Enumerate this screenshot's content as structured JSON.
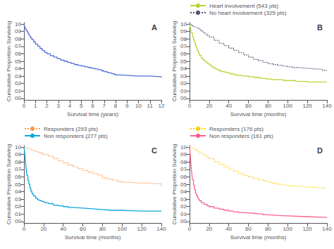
{
  "chart_data": [
    {
      "type": "step",
      "title": "A",
      "x_label": "Survival time (years)",
      "y_label": "Cumulative Proportion Surviving",
      "xlim": [
        0,
        12
      ],
      "ylim": [
        -0.02,
        1.02
      ],
      "xticks": [
        0,
        1,
        2,
        3,
        4,
        5,
        6,
        7,
        8,
        9,
        10,
        11,
        12
      ],
      "yticks": [
        {
          "value": 0.0,
          "label": "00"
        },
        {
          "value": 0.1,
          "label": "01"
        },
        {
          "value": 0.2,
          "label": "02"
        },
        {
          "value": 0.3,
          "label": "03"
        },
        {
          "value": 0.4,
          "label": "04"
        },
        {
          "value": 0.5,
          "label": "05"
        },
        {
          "value": 0.6,
          "label": "06"
        },
        {
          "value": 0.7,
          "label": "07"
        },
        {
          "value": 0.8,
          "label": "08"
        },
        {
          "value": 0.9,
          "label": "09"
        },
        {
          "value": 1.0,
          "label": "10"
        }
      ],
      "grid": false,
      "series": [
        {
          "line_style": "solid",
          "x": [
            0,
            0.02,
            0.05,
            0.08,
            0.12,
            0.17,
            0.22,
            0.28,
            0.35,
            0.42,
            0.5,
            0.6,
            0.7,
            0.85,
            1.0,
            1.2,
            1.4,
            1.6,
            1.8,
            2.0,
            2.3,
            2.6,
            2.9,
            3.2,
            3.5,
            3.8,
            4.1,
            4.4,
            4.7,
            5.0,
            5.3,
            5.6,
            5.9,
            6.2,
            6.5,
            6.8,
            7.0,
            7.3,
            7.6,
            7.8,
            8.0,
            8.5,
            9.0,
            9.5,
            10.0,
            10.5,
            11.0,
            11.5,
            12.0
          ],
          "values": [
            1.0,
            0.985,
            0.97,
            0.955,
            0.94,
            0.925,
            0.91,
            0.895,
            0.875,
            0.855,
            0.83,
            0.81,
            0.79,
            0.76,
            0.73,
            0.7,
            0.67,
            0.645,
            0.62,
            0.6,
            0.575,
            0.555,
            0.535,
            0.515,
            0.5,
            0.485,
            0.47,
            0.455,
            0.445,
            0.435,
            0.425,
            0.415,
            0.405,
            0.395,
            0.385,
            0.37,
            0.36,
            0.345,
            0.335,
            0.325,
            0.315,
            0.31,
            0.305,
            0.3,
            0.3,
            0.3,
            0.295,
            0.29,
            0.28
          ]
        }
      ]
    },
    {
      "type": "step",
      "title": "B",
      "x_label": "Survival time (months)",
      "y_label": "Cumulative Proportion Surviving",
      "xlim": [
        0,
        140
      ],
      "ylim": [
        -0.02,
        1.02
      ],
      "xticks": [
        0,
        20,
        40,
        60,
        80,
        100,
        120,
        140
      ],
      "yticks": [
        {
          "value": 0.0,
          "label": "00"
        },
        {
          "value": 0.1,
          "label": "01"
        },
        {
          "value": 0.2,
          "label": "02"
        },
        {
          "value": 0.3,
          "label": "03"
        },
        {
          "value": 0.4,
          "label": "04"
        },
        {
          "value": 0.5,
          "label": "05"
        },
        {
          "value": 0.6,
          "label": "06"
        },
        {
          "value": 0.7,
          "label": "07"
        },
        {
          "value": 0.8,
          "label": "08"
        },
        {
          "value": 0.9,
          "label": "09"
        },
        {
          "value": 1.0,
          "label": "10"
        }
      ],
      "grid": false,
      "legend": "top",
      "series": [
        {
          "name": "Heart involvement (543 pts)",
          "line_style": "solid",
          "x": [
            0,
            0.5,
            1,
            1.5,
            2,
            3,
            4,
            5,
            6,
            7,
            8,
            9,
            10,
            12,
            14,
            16,
            18,
            20,
            22,
            24,
            27,
            30,
            33,
            36,
            39,
            42,
            45,
            48,
            54,
            60,
            66,
            72,
            78,
            84,
            90,
            96,
            102,
            108,
            114,
            120,
            126,
            132,
            138,
            140
          ],
          "values": [
            1.0,
            0.97,
            0.94,
            0.91,
            0.88,
            0.83,
            0.79,
            0.75,
            0.71,
            0.68,
            0.64,
            0.61,
            0.58,
            0.54,
            0.51,
            0.49,
            0.47,
            0.45,
            0.43,
            0.41,
            0.39,
            0.37,
            0.36,
            0.35,
            0.34,
            0.33,
            0.32,
            0.31,
            0.3,
            0.29,
            0.28,
            0.27,
            0.26,
            0.25,
            0.25,
            0.24,
            0.24,
            0.23,
            0.23,
            0.22,
            0.22,
            0.22,
            0.22,
            0.22
          ]
        },
        {
          "name": "No heart involvement (325 pts)",
          "line_style": "dotted",
          "x": [
            0,
            1,
            2,
            3,
            4,
            5,
            6,
            7,
            8,
            9,
            10,
            12,
            14,
            16,
            18,
            20,
            25,
            30,
            35,
            40,
            45,
            50,
            55,
            60,
            65,
            70,
            75,
            80,
            85,
            90,
            95,
            100,
            105,
            110,
            115,
            120,
            125,
            130,
            135,
            140
          ],
          "values": [
            1.0,
            0.99,
            0.98,
            0.97,
            0.965,
            0.96,
            0.955,
            0.95,
            0.945,
            0.935,
            0.925,
            0.905,
            0.885,
            0.865,
            0.845,
            0.825,
            0.78,
            0.74,
            0.71,
            0.675,
            0.645,
            0.615,
            0.585,
            0.555,
            0.525,
            0.505,
            0.485,
            0.465,
            0.455,
            0.445,
            0.435,
            0.425,
            0.415,
            0.41,
            0.405,
            0.4,
            0.395,
            0.39,
            0.375,
            0.37
          ]
        }
      ]
    },
    {
      "type": "step",
      "title": "C",
      "x_label": "Survival time (months)",
      "y_label": "Cumulative Proportion Surviving",
      "xlim": [
        0,
        140
      ],
      "ylim": [
        -0.02,
        1.02
      ],
      "xticks": [
        0,
        20,
        40,
        60,
        80,
        100,
        120,
        140
      ],
      "yticks": [
        {
          "value": 0.0,
          "label": "00"
        },
        {
          "value": 0.1,
          "label": "01"
        },
        {
          "value": 0.2,
          "label": "02"
        },
        {
          "value": 0.3,
          "label": "03"
        },
        {
          "value": 0.4,
          "label": "04"
        },
        {
          "value": 0.5,
          "label": "05"
        },
        {
          "value": 0.6,
          "label": "06"
        },
        {
          "value": 0.7,
          "label": "07"
        },
        {
          "value": 0.8,
          "label": "08"
        },
        {
          "value": 0.9,
          "label": "09"
        },
        {
          "value": 1.0,
          "label": "10"
        }
      ],
      "grid": false,
      "legend": "top",
      "series": [
        {
          "name": "Responders (293 pts)",
          "line_style": "dotted",
          "x": [
            0,
            1,
            2,
            3,
            4,
            5,
            6,
            7,
            8,
            9,
            10,
            12,
            15,
            18,
            20,
            25,
            30,
            35,
            40,
            45,
            50,
            55,
            60,
            65,
            70,
            75,
            80,
            85,
            90,
            95,
            100,
            105,
            110,
            115,
            120,
            125,
            130,
            135,
            140
          ],
          "values": [
            1.0,
            0.995,
            0.99,
            0.985,
            0.98,
            0.975,
            0.97,
            0.965,
            0.96,
            0.955,
            0.95,
            0.94,
            0.925,
            0.91,
            0.9,
            0.875,
            0.845,
            0.815,
            0.79,
            0.76,
            0.735,
            0.71,
            0.685,
            0.665,
            0.645,
            0.625,
            0.585,
            0.57,
            0.555,
            0.54,
            0.53,
            0.525,
            0.52,
            0.515,
            0.515,
            0.51,
            0.51,
            0.505,
            0.47
          ]
        },
        {
          "name": "Non responders (277 pts)",
          "line_style": "solid",
          "x": [
            0,
            0.5,
            1,
            1.5,
            2,
            2.5,
            3,
            4,
            5,
            6,
            7,
            8,
            9,
            10,
            12,
            14,
            16,
            18,
            20,
            22,
            25,
            30,
            35,
            40,
            45,
            50,
            55,
            60,
            65,
            70,
            75,
            80,
            85,
            90,
            100,
            110,
            120,
            130,
            140
          ],
          "values": [
            1.0,
            0.95,
            0.88,
            0.81,
            0.74,
            0.68,
            0.62,
            0.55,
            0.5,
            0.45,
            0.41,
            0.38,
            0.36,
            0.34,
            0.31,
            0.29,
            0.28,
            0.27,
            0.26,
            0.25,
            0.24,
            0.22,
            0.21,
            0.2,
            0.19,
            0.185,
            0.18,
            0.175,
            0.17,
            0.165,
            0.16,
            0.155,
            0.15,
            0.15,
            0.145,
            0.14,
            0.14,
            0.14,
            0.14
          ]
        }
      ]
    },
    {
      "type": "step",
      "title": "D",
      "x_label": "Survival time (months)",
      "y_label": "Cumulative Proportion Surviving",
      "xlim": [
        0,
        140
      ],
      "ylim": [
        -0.02,
        1.02
      ],
      "xticks": [
        0,
        20,
        40,
        60,
        80,
        100,
        120,
        140
      ],
      "yticks": [
        {
          "value": 0.0,
          "label": "00"
        },
        {
          "value": 0.1,
          "label": "01"
        },
        {
          "value": 0.2,
          "label": "02"
        },
        {
          "value": 0.3,
          "label": "03"
        },
        {
          "value": 0.4,
          "label": "04"
        },
        {
          "value": 0.5,
          "label": "05"
        },
        {
          "value": 0.6,
          "label": "06"
        },
        {
          "value": 0.7,
          "label": "07"
        },
        {
          "value": 0.8,
          "label": "08"
        },
        {
          "value": 0.9,
          "label": "09"
        },
        {
          "value": 1.0,
          "label": "10"
        }
      ],
      "grid": false,
      "legend": "top",
      "series": [
        {
          "name": "Responders (176 pts)",
          "line_style": "dotted",
          "x": [
            0,
            1,
            2,
            3,
            4,
            5,
            6,
            7,
            8,
            9,
            10,
            12,
            15,
            18,
            20,
            25,
            30,
            35,
            40,
            45,
            50,
            55,
            60,
            65,
            70,
            75,
            80,
            85,
            90,
            95,
            100,
            105,
            110,
            115,
            120,
            125,
            130,
            135,
            140
          ],
          "values": [
            1.0,
            0.995,
            0.99,
            0.985,
            0.98,
            0.975,
            0.97,
            0.96,
            0.95,
            0.94,
            0.93,
            0.91,
            0.885,
            0.86,
            0.845,
            0.805,
            0.77,
            0.735,
            0.7,
            0.675,
            0.645,
            0.62,
            0.6,
            0.58,
            0.56,
            0.545,
            0.525,
            0.51,
            0.5,
            0.49,
            0.48,
            0.475,
            0.47,
            0.465,
            0.46,
            0.455,
            0.45,
            0.445,
            0.44
          ]
        },
        {
          "name": "Non responders (161 pts)",
          "line_style": "solid",
          "x": [
            0,
            0.5,
            1,
            1.5,
            2,
            2.5,
            3,
            4,
            5,
            6,
            7,
            8,
            9,
            10,
            12,
            15,
            18,
            20,
            25,
            30,
            35,
            40,
            45,
            50,
            55,
            60,
            65,
            70,
            75,
            80,
            85,
            90,
            100,
            110,
            120,
            130,
            140
          ],
          "values": [
            1.0,
            0.93,
            0.84,
            0.76,
            0.68,
            0.62,
            0.56,
            0.49,
            0.43,
            0.38,
            0.35,
            0.32,
            0.3,
            0.28,
            0.25,
            0.23,
            0.21,
            0.2,
            0.18,
            0.165,
            0.15,
            0.14,
            0.13,
            0.12,
            0.115,
            0.11,
            0.105,
            0.1,
            0.09,
            0.085,
            0.08,
            0.075,
            0.07,
            0.065,
            0.06,
            0.055,
            0.055
          ]
        }
      ]
    }
  ]
}
